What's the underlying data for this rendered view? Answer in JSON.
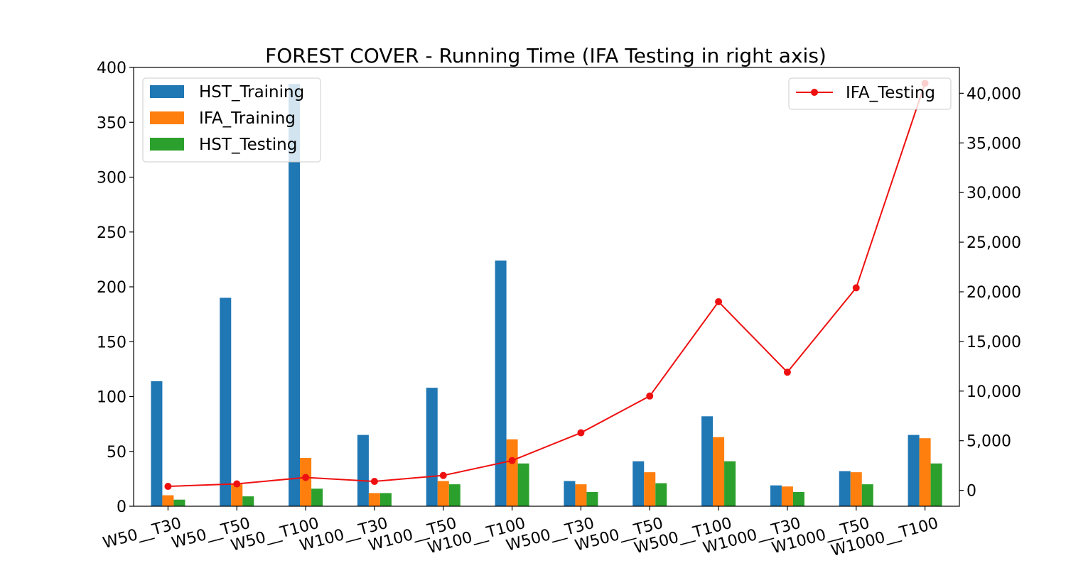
{
  "chart_data": {
    "type": "bar",
    "title": "FOREST COVER - Running Time (IFA Testing in right axis)",
    "xlabel": "",
    "ylabel": "",
    "categories": [
      "W50__T30",
      "W50__T50",
      "W50__T100",
      "W100__T30",
      "W100__T50",
      "W100__T100",
      "W500__T30",
      "W500__T50",
      "W500__T100",
      "W1000__T30",
      "W1000__T50",
      "W1000__T100"
    ],
    "ylim": [
      0,
      400
    ],
    "y_ticks": [
      "0",
      "50",
      "100",
      "150",
      "200",
      "250",
      "300",
      "350",
      "400"
    ],
    "y2lim": [
      -1600,
      42600
    ],
    "y2_ticks": [
      "0",
      "5,000",
      "10,000",
      "15,000",
      "20,000",
      "25,000",
      "30,000",
      "35,000",
      "40,000"
    ],
    "grid": false,
    "series": [
      {
        "name": "HST_Training",
        "type": "bar",
        "axis": "left",
        "color": "#1f77b4",
        "values": [
          114,
          190,
          385,
          65,
          108,
          224,
          23,
          41,
          82,
          19,
          32,
          65
        ]
      },
      {
        "name": "IFA_Training",
        "type": "bar",
        "axis": "left",
        "color": "#ff7f0e",
        "values": [
          10,
          20,
          44,
          12,
          23,
          61,
          20,
          31,
          63,
          18,
          31,
          62
        ]
      },
      {
        "name": "HST_Testing",
        "type": "bar",
        "axis": "left",
        "color": "#2ca02c",
        "values": [
          6,
          9,
          16,
          12,
          20,
          39,
          13,
          21,
          41,
          13,
          20,
          39
        ]
      },
      {
        "name": "IFA_Testing",
        "type": "line",
        "axis": "right",
        "color": "#ee1010",
        "values": [
          400,
          650,
          1300,
          900,
          1500,
          3000,
          5800,
          9500,
          19000,
          11900,
          20400,
          41000
        ]
      }
    ],
    "legend_left": {
      "position": "upper-left",
      "entries": [
        "HST_Training",
        "IFA_Training",
        "HST_Testing"
      ]
    },
    "legend_right": {
      "position": "upper-right",
      "entries": [
        "IFA_Testing"
      ]
    }
  }
}
